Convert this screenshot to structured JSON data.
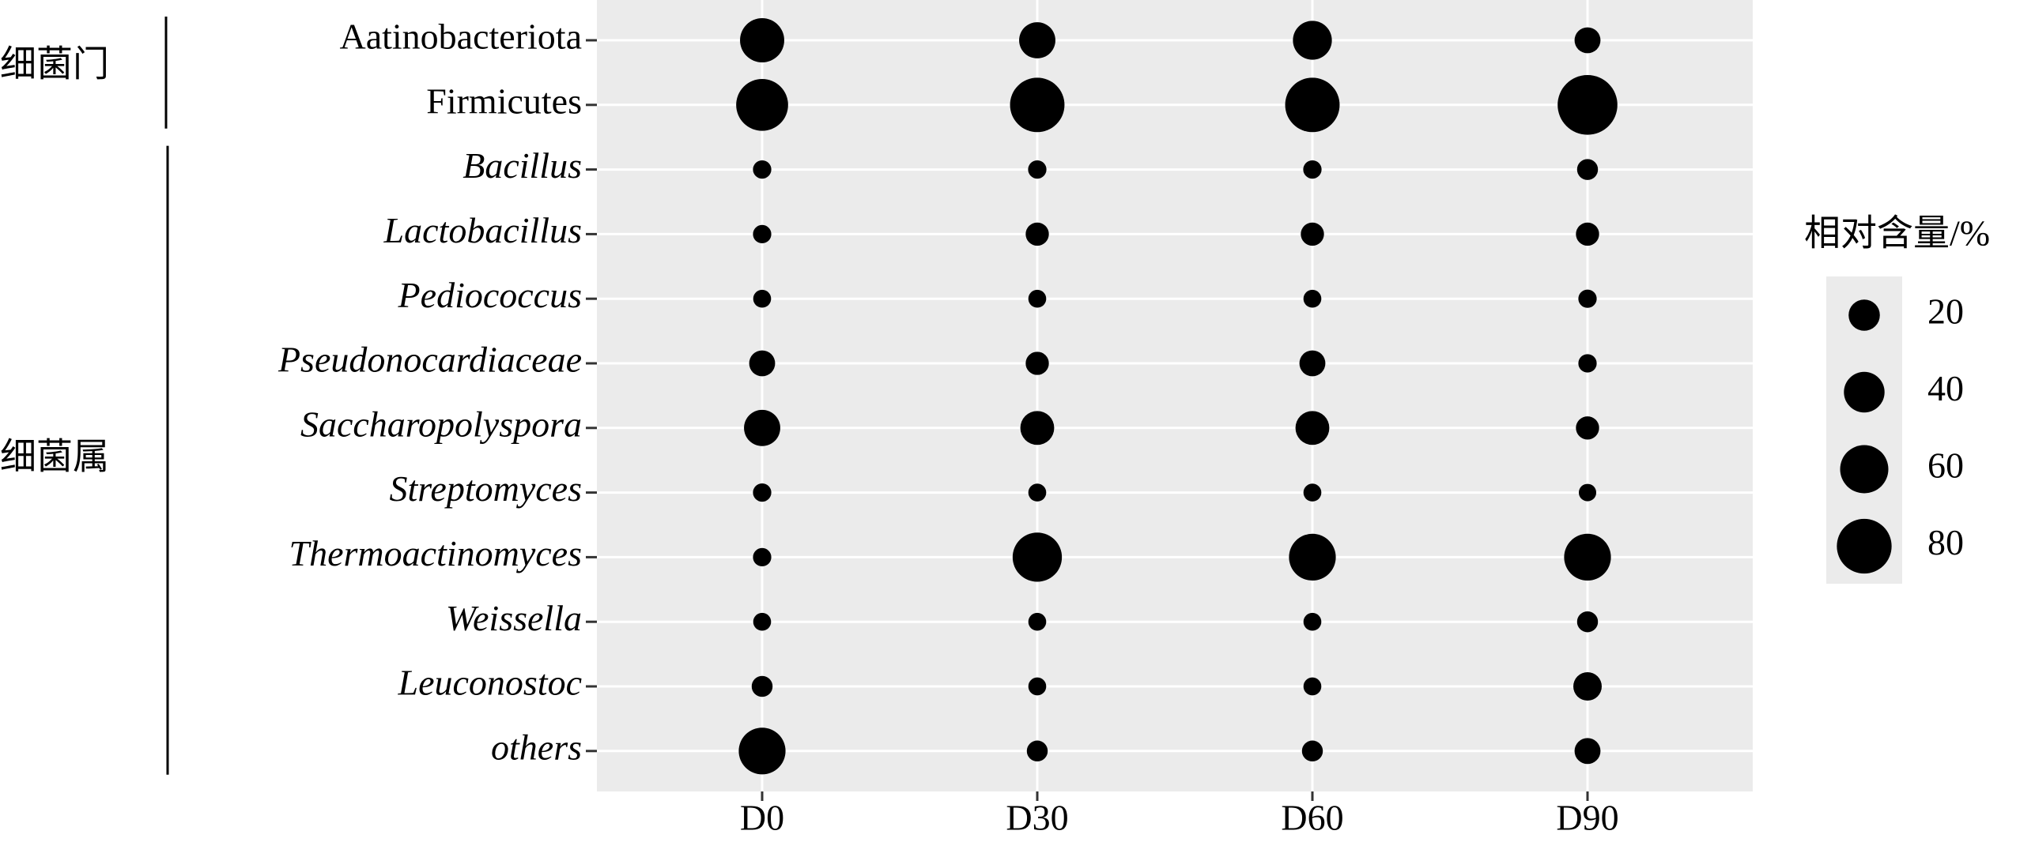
{
  "chart_data": {
    "type": "bubble",
    "x_categories": [
      "D0",
      "D30",
      "D60",
      "D90"
    ],
    "y_categories": [
      "Aatinobacteriota",
      "Firmicutes",
      "Bacillus",
      "Lactobacillus",
      "Pediococcus",
      "Pseudonocardiaceae",
      "Saccharopolyspora",
      "Streptomyces",
      "Thermoactinomyces",
      "Weissella",
      "Leuconostoc",
      "others"
    ],
    "groups": [
      "细菌门",
      "细菌属"
    ],
    "values": [
      [
        49,
        30,
        36,
        11
      ],
      [
        71,
        79,
        79,
        97
      ],
      [
        1,
        1,
        1,
        4
      ],
      [
        1,
        7,
        7,
        7
      ],
      [
        0.5,
        0.5,
        0.5,
        1
      ],
      [
        11,
        7,
        11,
        1
      ],
      [
        30,
        25,
        25,
        7
      ],
      [
        1,
        0.5,
        0.5,
        0
      ],
      [
        1,
        63,
        56,
        56
      ],
      [
        0.5,
        0.5,
        0.5,
        4
      ],
      [
        4,
        0.5,
        0.5,
        15
      ],
      [
        56,
        4,
        4,
        11
      ]
    ],
    "color": "#000000",
    "legend_title": "相对含量/%",
    "size_legend": [
      20,
      40,
      60,
      80
    ],
    "grid": true
  }
}
